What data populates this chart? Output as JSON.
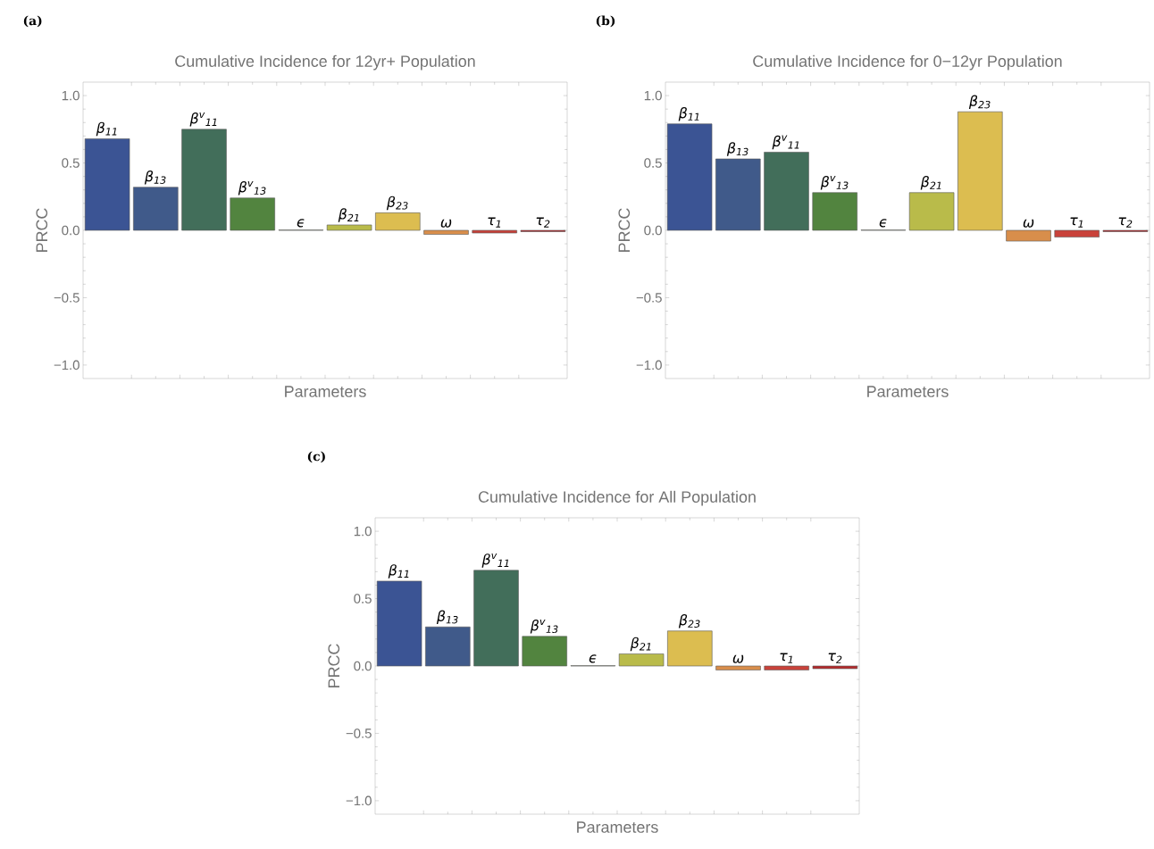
{
  "chart_data": [
    {
      "type": "bar",
      "title": "Cumulative Incidence for 12yr+ Population",
      "xlabel": "Parameters",
      "ylabel": "PRCC",
      "annotations": [
        "(a)"
      ],
      "categories": [
        "β$_{11}$",
        "β$_{13}$",
        "β$^{v}$$_{11}$",
        "β$^{v}$$_{13}$",
        "ϵ",
        "β$_{21}$",
        "β$_{23}$",
        "ω",
        "τ$_{1}$",
        "τ$_{2}$"
      ],
      "values": [
        0.68,
        0.32,
        0.75,
        0.24,
        0.002,
        0.04,
        0.13,
        -0.03,
        -0.02,
        -0.01
      ],
      "colors": [
        "#3b5494",
        "#405a8a",
        "#426e5a",
        "#52843f",
        "#5a6a30",
        "#b9bb4a",
        "#dcbd50",
        "#d88e4b",
        "#c9423a",
        "#b52a2c"
      ],
      "ylim": [
        -1.1,
        1.1
      ],
      "yticks": [
        {
          "value": -1,
          "label": "−1.0"
        },
        {
          "value": -0.5,
          "label": "−0.5"
        },
        {
          "value": 0,
          "label": "0.0"
        },
        {
          "value": 0.5,
          "label": "0.5"
        },
        {
          "value": 1,
          "label": "1.0"
        }
      ]
    },
    {
      "type": "bar",
      "title": "Cumulative Incidence for 0−12yr Population",
      "xlabel": "Parameters",
      "ylabel": "PRCC",
      "annotations": [
        "(b)"
      ],
      "categories": [
        "β$_{11}$",
        "β$_{13}$",
        "β$^{v}$$_{11}$",
        "β$^{v}$$_{13}$",
        "ϵ",
        "β$_{21}$",
        "β$_{23}$",
        "ω",
        "τ$_{1}$",
        "τ$_{2}$"
      ],
      "values": [
        0.79,
        0.53,
        0.58,
        0.28,
        0.002,
        0.28,
        0.88,
        -0.08,
        -0.05,
        -0.01
      ],
      "colors": [
        "#3b5494",
        "#405a8a",
        "#426e5a",
        "#52843f",
        "#5a6a30",
        "#b9bb4a",
        "#dcbd50",
        "#d88e4b",
        "#c9423a",
        "#b52a2c"
      ],
      "ylim": [
        -1.1,
        1.1
      ],
      "yticks": [
        {
          "value": -1,
          "label": "−1.0"
        },
        {
          "value": -0.5,
          "label": "−0.5"
        },
        {
          "value": 0,
          "label": "0.0"
        },
        {
          "value": 0.5,
          "label": "0.5"
        },
        {
          "value": 1,
          "label": "1.0"
        }
      ]
    },
    {
      "type": "bar",
      "title": "Cumulative Incidence for All Population",
      "xlabel": "Parameters",
      "ylabel": "PRCC",
      "annotations": [
        "(c)"
      ],
      "categories": [
        "β$_{11}$",
        "β$_{13}$",
        "β$^{v}$$_{11}$",
        "β$^{v}$$_{13}$",
        "ϵ",
        "β$_{21}$",
        "β$_{23}$",
        "ω",
        "τ$_{1}$",
        "τ$_{2}$"
      ],
      "values": [
        0.63,
        0.29,
        0.71,
        0.22,
        0.002,
        0.09,
        0.26,
        -0.03,
        -0.03,
        -0.02
      ],
      "colors": [
        "#3b5494",
        "#405a8a",
        "#426e5a",
        "#52843f",
        "#5a6a30",
        "#b9bb4a",
        "#dcbd50",
        "#d88e4b",
        "#c9423a",
        "#b52a2c"
      ],
      "ylim": [
        -1.1,
        1.1
      ],
      "yticks": [
        {
          "value": -1,
          "label": "−1.0"
        },
        {
          "value": -0.5,
          "label": "−0.5"
        },
        {
          "value": 0,
          "label": "0.0"
        },
        {
          "value": 0.5,
          "label": "0.5"
        },
        {
          "value": 1,
          "label": "1.0"
        }
      ]
    }
  ]
}
